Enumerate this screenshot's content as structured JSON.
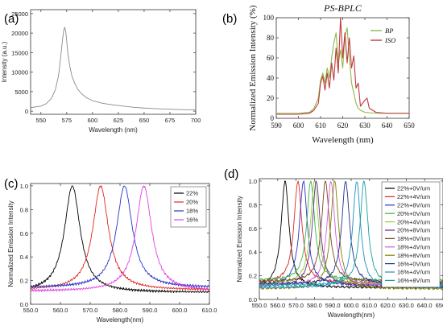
{
  "chart_data": [
    {
      "panel": "(a)",
      "type": "line",
      "title": "",
      "xlabel": "Wavelength (nm)",
      "ylabel": "Intensity (a.u.)",
      "xlim": [
        540,
        700
      ],
      "ylim": [
        -800,
        26000
      ],
      "xticks": [
        550,
        575,
        600,
        625,
        650,
        675,
        700
      ],
      "yticks": [
        0,
        5000,
        10000,
        15000,
        20000,
        25000
      ],
      "grid": false,
      "series": [
        {
          "color": "#8a8a8a",
          "x": [
            540,
            550,
            555,
            560,
            564,
            567,
            569,
            571,
            572,
            573,
            574,
            575,
            576,
            578,
            580,
            583,
            586,
            590,
            595,
            600,
            610,
            620,
            630,
            640,
            650,
            660,
            680,
            700
          ],
          "y": [
            900,
            1300,
            1900,
            3200,
            5500,
            9000,
            13500,
            18500,
            20500,
            21500,
            20500,
            18000,
            15000,
            11500,
            9000,
            7000,
            5500,
            4300,
            3300,
            2700,
            2000,
            1600,
            1300,
            1000,
            800,
            650,
            450,
            300
          ]
        }
      ]
    },
    {
      "panel": "(b)",
      "type": "line",
      "title": "PS-BPLC",
      "xlabel": "Wavelength (nm)",
      "ylabel": "Normalized Emission Intensity (%)",
      "xlim": [
        590,
        650
      ],
      "ylim": [
        0,
        100
      ],
      "xticks": [
        590,
        600,
        610,
        620,
        630,
        640,
        650
      ],
      "yticks": [
        0,
        20,
        40,
        60,
        80,
        100
      ],
      "grid": false,
      "legend": "top-right",
      "series": [
        {
          "name": "BP",
          "color": "#8cb84a",
          "x": [
            590,
            600,
            605,
            607,
            609,
            610,
            611,
            612,
            613,
            614,
            615,
            616,
            617,
            618,
            619,
            620,
            621,
            622,
            623,
            624,
            625,
            626,
            627,
            628,
            630,
            635,
            640,
            650
          ],
          "y": [
            5,
            5,
            6,
            10,
            20,
            38,
            45,
            35,
            50,
            40,
            60,
            75,
            85,
            55,
            68,
            50,
            82,
            90,
            60,
            35,
            25,
            15,
            10,
            8,
            6,
            5,
            5,
            5
          ]
        },
        {
          "name": "ISO",
          "color": "#c0393b",
          "x": [
            590,
            600,
            605,
            607,
            609,
            610,
            611,
            612,
            613,
            614,
            615,
            616,
            617,
            618,
            619,
            620,
            621,
            622,
            623,
            624,
            625,
            626,
            627,
            628,
            629,
            630,
            631,
            632,
            635,
            640,
            650
          ],
          "y": [
            4,
            4,
            5,
            8,
            15,
            35,
            42,
            28,
            45,
            30,
            55,
            38,
            70,
            45,
            100,
            60,
            85,
            55,
            80,
            50,
            62,
            30,
            35,
            12,
            15,
            18,
            20,
            10,
            6,
            5,
            5
          ]
        }
      ],
      "legend_items": [
        "BP",
        "ISO"
      ]
    },
    {
      "panel": "(c)",
      "type": "line",
      "title": "",
      "xlabel": "Wavelength(nm)",
      "ylabel": "Normalized Emission Intensity",
      "xlim": [
        550,
        610
      ],
      "ylim": [
        0,
        1.02
      ],
      "xticks": [
        550,
        560,
        570,
        580,
        590,
        600,
        610
      ],
      "yticks": [
        0.0,
        0.2,
        0.4,
        0.6,
        0.8,
        1.0
      ],
      "grid": false,
      "legend": "top-right",
      "peak_width": 3.2,
      "series": [
        {
          "name": "22%",
          "color": "#000000",
          "center": 564,
          "baseline": 0.1
        },
        {
          "name": "20%",
          "color": "#e0281f",
          "center": 573.5,
          "baseline": 0.12
        },
        {
          "name": "18%",
          "color": "#2a33c6",
          "center": 581.5,
          "baseline": 0.14
        },
        {
          "name": "16%",
          "color": "#e040e0",
          "center": 588,
          "baseline": 0.11
        }
      ]
    },
    {
      "panel": "(d)",
      "type": "line",
      "title": "",
      "xlabel": "Wavelength(nm)",
      "ylabel": "Normalized Emission Intensity",
      "xlim": [
        550,
        650
      ],
      "ylim": [
        0,
        1.02
      ],
      "xticks": [
        550,
        560,
        570,
        580,
        590,
        600,
        610,
        620,
        630,
        640,
        650
      ],
      "yticks": [
        0.0,
        0.2,
        0.4,
        0.6,
        0.8,
        1.0
      ],
      "grid": false,
      "legend": "top-right",
      "peak_width": 2.6,
      "series": [
        {
          "name": "22%+0V/um",
          "color": "#000000",
          "center": 564,
          "baseline": 0.1
        },
        {
          "name": "22%+4V/um",
          "color": "#e0281f",
          "center": 571,
          "baseline": 0.14
        },
        {
          "name": "22%+8V/um",
          "color": "#2a33c6",
          "center": 574,
          "baseline": 0.12
        },
        {
          "name": "20%+0V/um",
          "color": "#39b54a",
          "center": 578,
          "baseline": 0.16
        },
        {
          "name": "20%+4V/um",
          "color": "#9acd32",
          "center": 580,
          "baseline": 0.13
        },
        {
          "name": "20%+8V/um",
          "color": "#5b2c8f",
          "center": 581,
          "baseline": 0.11
        },
        {
          "name": "18%+0V/um",
          "color": "#7a4a22",
          "center": 586,
          "baseline": 0.15
        },
        {
          "name": "18%+4V/um",
          "color": "#d460d4",
          "center": 589,
          "baseline": 0.12
        },
        {
          "name": "18%+8V/um",
          "color": "#808000",
          "center": 591,
          "baseline": 0.09
        },
        {
          "name": "16%+0V/um",
          "color": "#1f2f8f",
          "center": 597,
          "baseline": 0.13
        },
        {
          "name": "16%+4V/um",
          "color": "#1f8fbf",
          "center": 603,
          "baseline": 0.1
        },
        {
          "name": "16%+8V/um",
          "color": "#16a0a0",
          "center": 607,
          "baseline": 0.12
        }
      ]
    }
  ]
}
